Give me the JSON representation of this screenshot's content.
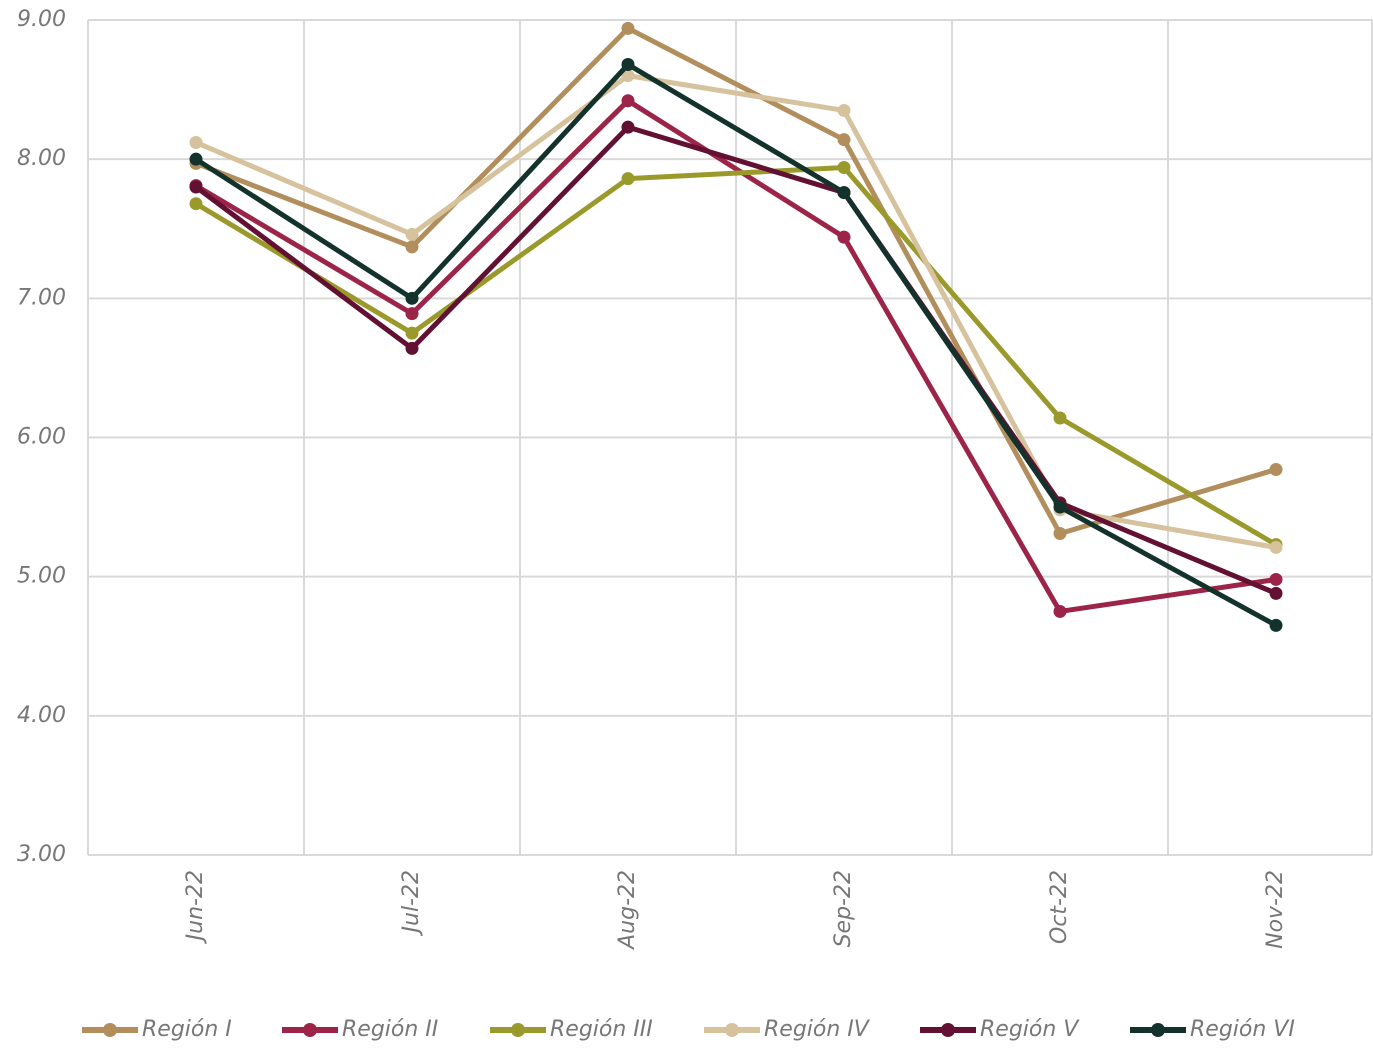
{
  "chart_data": {
    "type": "line",
    "categories": [
      "Jun-22",
      "Jul-22",
      "Aug-22",
      "Sep-22",
      "Oct-22",
      "Nov-22"
    ],
    "series": [
      {
        "name": "Región I",
        "color": "#b38e5d",
        "values": [
          7.97,
          7.37,
          8.94,
          8.14,
          5.31,
          5.77
        ]
      },
      {
        "name": "Región II",
        "color": "#9d2449",
        "values": [
          7.81,
          6.89,
          8.42,
          7.44,
          4.75,
          4.98
        ]
      },
      {
        "name": "Región III",
        "color": "#9a9a2c",
        "values": [
          7.68,
          6.75,
          7.86,
          7.94,
          6.14,
          5.23
        ]
      },
      {
        "name": "Región IV",
        "color": "#d6c29d",
        "values": [
          8.12,
          7.46,
          8.6,
          8.35,
          5.48,
          5.21
        ]
      },
      {
        "name": "Región V",
        "color": "#621132",
        "values": [
          7.8,
          6.64,
          8.23,
          7.76,
          5.53,
          4.88
        ]
      },
      {
        "name": "Región VI",
        "color": "#13322b",
        "values": [
          8.0,
          7.0,
          8.68,
          7.76,
          5.5,
          4.65
        ]
      }
    ],
    "ylim": [
      3,
      9
    ],
    "yticks": [
      {
        "value": 3,
        "label": "3.00"
      },
      {
        "value": 4,
        "label": "4.00"
      },
      {
        "value": 5,
        "label": "5.00"
      },
      {
        "value": 6,
        "label": "6.00"
      },
      {
        "value": 7,
        "label": "7.00"
      },
      {
        "value": 8,
        "label": "8.00"
      },
      {
        "value": 9,
        "label": "9.00"
      }
    ],
    "grid": true,
    "legend": "bottom"
  }
}
